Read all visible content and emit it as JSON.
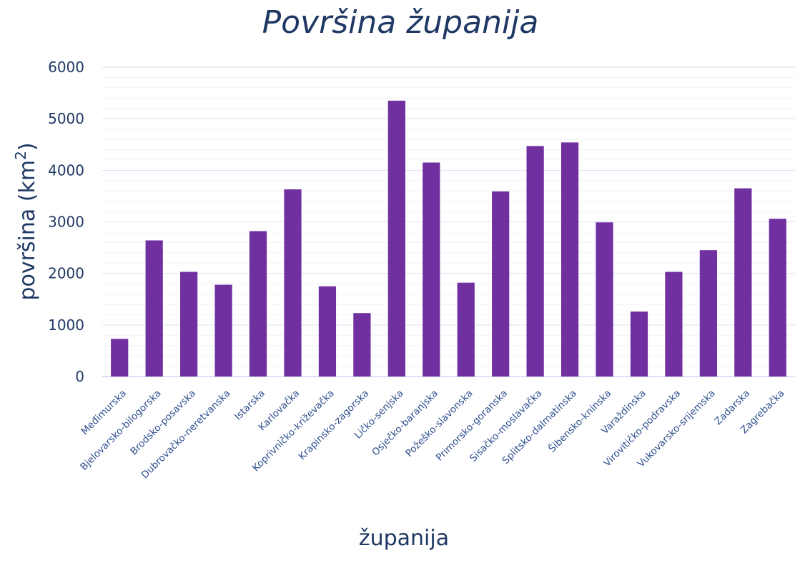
{
  "colors": {
    "bar": "#7030a0",
    "text": "#1f3864"
  },
  "chart_data": {
    "type": "bar",
    "title": "Površina županija",
    "xlabel": "županija",
    "ylabel_main": "površina (km",
    "ylabel_sup": "2",
    "ylabel_tail": ")",
    "ylim": [
      0,
      6000
    ],
    "yticks": [
      0,
      1000,
      2000,
      3000,
      4000,
      5000,
      6000
    ],
    "grid": true,
    "categories": [
      "Međimurska",
      "Bjelovarsko-bilogorska",
      "Brodsko-posavska",
      "Dubrovačko-neretvanska",
      "Istarska",
      "Karlovačka",
      "Koprivničko-križevačka",
      "Krapinsko-zagorska",
      "Ličko-senjska",
      "Osječko-baranjska",
      "Požeško-slavonska",
      "Primorsko-goranska",
      "Sisačko-moslavačka",
      "Splitsko-dalmatinska",
      "Šibensko-kninska",
      "Varaždinska",
      "Virovitičko-podravska",
      "Vukovarsko-srijemska",
      "Zadarska",
      "Zagrebačka"
    ],
    "values": [
      730,
      2640,
      2030,
      1780,
      2820,
      3630,
      1750,
      1230,
      5350,
      4150,
      1820,
      3590,
      4470,
      4540,
      2990,
      1260,
      2030,
      2450,
      3650,
      3060
    ]
  }
}
